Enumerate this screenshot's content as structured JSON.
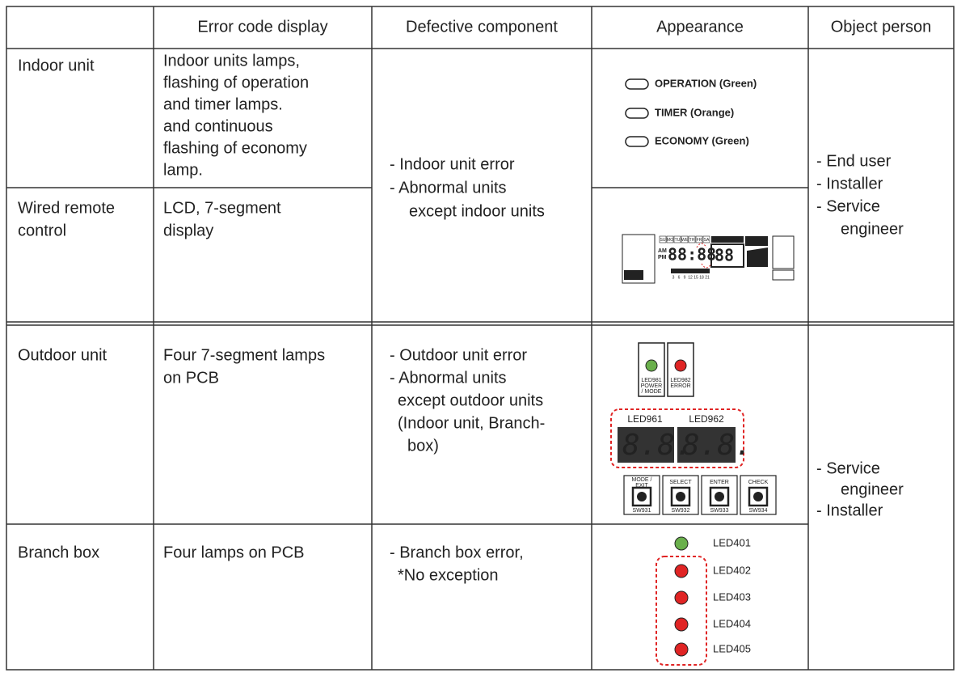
{
  "table": {
    "header": [
      "Error code display",
      "Defective component",
      "Appearance",
      "Object person"
    ],
    "rows": [
      {
        "name": [
          "Indoor unit"
        ],
        "display": [
          "Indoor units lamps,",
          "flashing of operation",
          "and timer lamps.",
          "and continuous",
          "flashing of economy",
          "lamp."
        ],
        "appearance": [
          "OPERATION (Green)",
          "TIMER (Orange)",
          "ECONOMY (Green)"
        ]
      },
      {
        "name": [
          "Wired remote",
          "control"
        ],
        "display": [
          "LCD, 7-segment",
          "display"
        ],
        "appearance": {
          "days": [
            "SU",
            "MO",
            "TU",
            "WE",
            "TH",
            "FR",
            "SA"
          ],
          "am": "AM",
          "pm": "PM",
          "hours": [
            "3",
            "6",
            "9",
            "12",
            "15",
            "18",
            "21"
          ]
        }
      },
      {
        "name": [
          "Outdoor unit"
        ],
        "display": [
          "Four 7-segment lamps",
          "on PCB"
        ],
        "defective": [
          "- Outdoor unit error",
          "- Abnormal units",
          "except outdoor units",
          "(Indoor unit, Branch-",
          "box)"
        ],
        "appearance": {
          "leds": [
            [
              "LED981",
              "POWER",
              "/ MODE"
            ],
            [
              "LED982",
              "ERROR"
            ]
          ],
          "segments": [
            "LED961",
            "LED962"
          ],
          "buttons": [
            {
              "label": [
                "MODE /",
                "EXIT"
              ],
              "sw": "SW931"
            },
            {
              "label": [
                "SELECT"
              ],
              "sw": "SW932"
            },
            {
              "label": [
                "ENTER"
              ],
              "sw": "SW933"
            },
            {
              "label": [
                "CHECK"
              ],
              "sw": "SW934"
            }
          ]
        }
      },
      {
        "name": [
          "Branch box"
        ],
        "display": [
          "Four lamps on PCB"
        ],
        "defective": [
          "- Branch box error,",
          "*No exception"
        ],
        "appearance": [
          "LED401",
          "LED402",
          "LED403",
          "LED404",
          "LED405"
        ]
      }
    ],
    "indoor_group": {
      "defective": [
        "- Indoor unit error",
        "- Abnormal units",
        "except indoor units"
      ],
      "person": [
        "- End user",
        "- Installer",
        "- Service",
        "engineer"
      ]
    },
    "outdoor_group": {
      "person": [
        "- Service",
        "engineer",
        "- Installer"
      ]
    }
  }
}
